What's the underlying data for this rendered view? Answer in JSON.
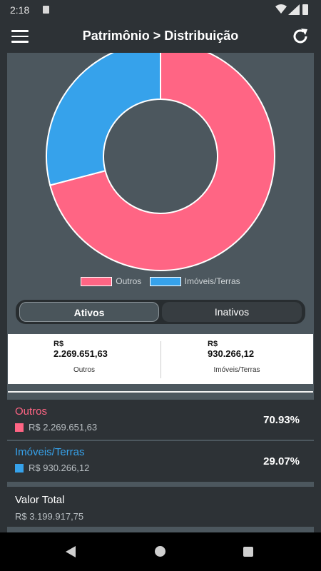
{
  "status_bar": {
    "time": "2:18"
  },
  "app_bar": {
    "title": "Patrimônio > Distribuição",
    "menu_icon": "hamburger-icon",
    "refresh_icon": "refresh-icon"
  },
  "chart_data": {
    "type": "pie",
    "donut": true,
    "categories": [
      "Outros",
      "Imóveis/Terras"
    ],
    "values": [
      70.93,
      29.07
    ],
    "colors": [
      "#ff6584",
      "#36a2eb"
    ],
    "legend": "bottom"
  },
  "tabs": [
    {
      "label": "Ativos",
      "active": true
    },
    {
      "label": "Inativos",
      "active": false
    }
  ],
  "cards": [
    {
      "currency": "R$",
      "value": "2.269.651,63",
      "label": "Outros"
    },
    {
      "currency": "R$",
      "value": "930.266,12",
      "label": "Imóveis/Terras"
    }
  ],
  "rows": [
    {
      "name": "Outros",
      "amount": "R$ 2.269.651,63",
      "percent": "70.93%",
      "color": "#ff6584"
    },
    {
      "name": "Imóveis/Terras",
      "amount": "R$ 930.266,12",
      "percent": "29.07%",
      "color": "#36a2eb"
    }
  ],
  "total": {
    "label": "Valor Total",
    "amount": "R$ 3.199.917,75"
  }
}
